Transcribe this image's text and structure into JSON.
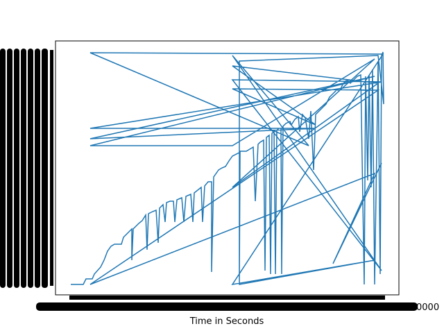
{
  "chart_data": {
    "type": "line",
    "x_label": "Time in Seconds",
    "xlim": [
      0,
      495
    ],
    "ylim": [
      0,
      366
    ],
    "series": [
      {
        "color": "#1f77b4",
        "x": [
          22,
          40,
          44,
          53,
          56,
          65,
          70,
          75,
          80,
          85,
          95,
          98,
          105,
          110,
          110,
          112,
          120,
          125,
          130,
          132,
          134,
          140,
          145,
          148,
          150,
          155,
          158,
          160,
          165,
          170,
          172,
          175,
          182,
          185,
          188,
          195,
          198,
          200,
          210,
          212,
          215,
          220,
          225,
          225,
          228,
          235,
          240,
          245,
          250,
          255,
          265,
          265,
          266,
          275,
          280,
          285,
          288,
          292,
          295,
          300,
          302,
          304,
          308,
          310,
          312,
          315,
          317,
          319,
          322,
          325,
          326,
          328,
          332,
          338,
          340,
          345,
          350,
          352,
          356,
          360,
          365,
          368,
          372,
          375,
          380,
          385,
          390,
          395,
          400,
          405,
          410,
          415,
          420,
          425,
          430,
          435,
          440,
          445,
          447,
          450,
          452,
          455,
          457,
          460,
          465,
          468,
          470,
          472,
          473,
          465,
          265,
          265,
          460,
          255,
          472,
          50,
          365,
          255,
          470,
          255,
          470,
          50,
          375,
          50,
          460,
          50,
          255,
          460,
          255,
          465,
          255,
          375,
          255,
          465,
          50,
          460,
          400,
          470
        ],
        "values": [
          15,
          15,
          23,
          23,
          30,
          40,
          50,
          63,
          70,
          73,
          73,
          83,
          90,
          95,
          50,
          95,
          103,
          107,
          115,
          65,
          117,
          120,
          122,
          75,
          125,
          130,
          105,
          133,
          135,
          135,
          105,
          137,
          140,
          105,
          142,
          145,
          105,
          147,
          155,
          105,
          157,
          163,
          163,
          33,
          170,
          180,
          183,
          185,
          193,
          200,
          205,
          15,
          207,
          207,
          210,
          213,
          135,
          217,
          220,
          223,
          35,
          227,
          230,
          30,
          233,
          235,
          30,
          237,
          240,
          240,
          30,
          243,
          247,
          250,
          245,
          253,
          257,
          235,
          260,
          255,
          225,
          265,
          180,
          260,
          265,
          270,
          275,
          285,
          290,
          295,
          295,
          305,
          310,
          305,
          310,
          315,
          317,
          15,
          315,
          165,
          317,
          155,
          325,
          15,
          335,
          30,
          345,
          350,
          275,
          345,
          337,
          15,
          50,
          15,
          347,
          349,
          215,
          345,
          35,
          310,
          307,
          240,
          240,
          225,
          315,
          215,
          215,
          340,
          155,
          305,
          330,
          245,
          297,
          295,
          15,
          175,
          45,
          190
        ]
      }
    ]
  }
}
